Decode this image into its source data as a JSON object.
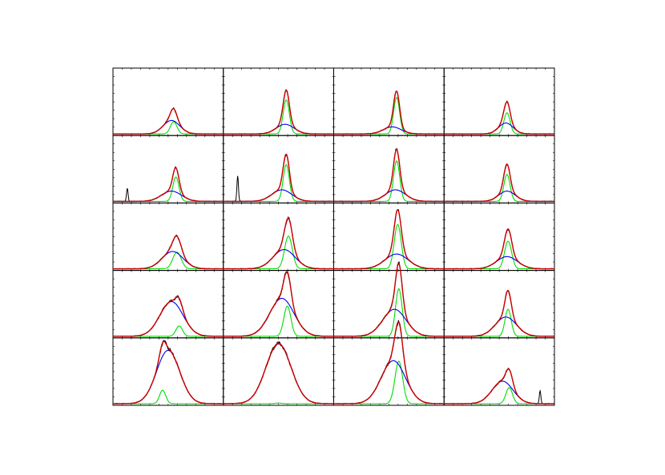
{
  "figure": {
    "rows": 5,
    "cols": 4,
    "x_range": [
      0,
      100
    ],
    "y_range": [
      0,
      1
    ],
    "colors": {
      "observed": "#000000",
      "total_fit": "#cc0000",
      "broad_component": "#0000ee",
      "narrow_component": "#00dd00",
      "frame": "#000000"
    },
    "tick_labels_shown": false
  },
  "chart_data": [
    {
      "type": "line",
      "panel": "r1c1",
      "x_range": [
        0,
        100
      ],
      "y_range": [
        0,
        1
      ],
      "components": {
        "broad": {
          "a": 0.21,
          "mu": 53,
          "sigma": 7.5
        },
        "narrow": {
          "a": 0.19,
          "mu": 55,
          "sigma": 3.0
        }
      },
      "spikes": []
    },
    {
      "type": "line",
      "panel": "r1c2",
      "x_range": [
        0,
        100
      ],
      "y_range": [
        0,
        1
      ],
      "components": {
        "broad": {
          "a": 0.15,
          "mu": 56,
          "sigma": 8.0
        },
        "narrow": {
          "a": 0.53,
          "mu": 57,
          "sigma": 2.8
        }
      },
      "spikes": []
    },
    {
      "type": "line",
      "panel": "r1c3",
      "x_range": [
        0,
        100
      ],
      "y_range": [
        0,
        1
      ],
      "components": {
        "broad": {
          "a": 0.11,
          "mu": 53,
          "sigma": 8.0
        },
        "narrow": {
          "a": 0.57,
          "mu": 57,
          "sigma": 2.7
        }
      },
      "spikes": []
    },
    {
      "type": "line",
      "panel": "r1c4",
      "x_range": [
        0,
        100
      ],
      "y_range": [
        0,
        1
      ],
      "components": {
        "broad": {
          "a": 0.17,
          "mu": 56,
          "sigma": 6.5
        },
        "narrow": {
          "a": 0.33,
          "mu": 57,
          "sigma": 2.8
        }
      },
      "spikes": []
    },
    {
      "type": "line",
      "panel": "r2c1",
      "x_range": [
        0,
        100
      ],
      "y_range": [
        0,
        1
      ],
      "components": {
        "broad": {
          "a": 0.16,
          "mu": 53,
          "sigma": 9.0
        },
        "narrow": {
          "a": 0.38,
          "mu": 57,
          "sigma": 2.8
        }
      },
      "spikes": [
        {
          "x": 13,
          "h": 0.2
        }
      ]
    },
    {
      "type": "line",
      "panel": "r2c2",
      "x_range": [
        0,
        100
      ],
      "y_range": [
        0,
        1
      ],
      "components": {
        "broad": {
          "a": 0.18,
          "mu": 53,
          "sigma": 9.0
        },
        "narrow": {
          "a": 0.57,
          "mu": 57,
          "sigma": 2.8
        }
      },
      "spikes": [
        {
          "x": 13,
          "h": 0.4
        }
      ]
    },
    {
      "type": "line",
      "panel": "r2c3",
      "x_range": [
        0,
        100
      ],
      "y_range": [
        0,
        1
      ],
      "components": {
        "broad": {
          "a": 0.18,
          "mu": 56,
          "sigma": 9.0
        },
        "narrow": {
          "a": 0.63,
          "mu": 57,
          "sigma": 2.8
        }
      },
      "spikes": []
    },
    {
      "type": "line",
      "panel": "r2c4",
      "x_range": [
        0,
        100
      ],
      "y_range": [
        0,
        1
      ],
      "components": {
        "broad": {
          "a": 0.16,
          "mu": 57,
          "sigma": 7.5
        },
        "narrow": {
          "a": 0.42,
          "mu": 57,
          "sigma": 2.8
        }
      },
      "spikes": []
    },
    {
      "type": "line",
      "panel": "r3c1",
      "x_range": [
        0,
        100
      ],
      "y_range": [
        0,
        1
      ],
      "components": {
        "broad": {
          "a": 0.27,
          "mu": 54,
          "sigma": 9.5
        },
        "narrow": {
          "a": 0.26,
          "mu": 58,
          "sigma": 3.8
        }
      },
      "spikes": []
    },
    {
      "type": "line",
      "panel": "r3c2",
      "x_range": [
        0,
        100
      ],
      "y_range": [
        0,
        1
      ],
      "components": {
        "broad": {
          "a": 0.3,
          "mu": 55,
          "sigma": 10.0
        },
        "narrow": {
          "a": 0.51,
          "mu": 59,
          "sigma": 3.5
        }
      },
      "spikes": []
    },
    {
      "type": "line",
      "panel": "r3c3",
      "x_range": [
        0,
        100
      ],
      "y_range": [
        0,
        1
      ],
      "components": {
        "broad": {
          "a": 0.23,
          "mu": 57,
          "sigma": 10.5
        },
        "narrow": {
          "a": 0.69,
          "mu": 58,
          "sigma": 3.2
        }
      },
      "spikes": []
    },
    {
      "type": "line",
      "panel": "r3c4",
      "x_range": [
        0,
        100
      ],
      "y_range": [
        0,
        1
      ],
      "components": {
        "broad": {
          "a": 0.19,
          "mu": 57,
          "sigma": 9.5
        },
        "narrow": {
          "a": 0.43,
          "mu": 58,
          "sigma": 3.2
        }
      },
      "spikes": []
    },
    {
      "type": "line",
      "panel": "r4c1",
      "x_range": [
        0,
        100
      ],
      "y_range": [
        0,
        1
      ],
      "components": {
        "broad": {
          "a": 0.54,
          "mu": 53,
          "sigma": 10.5
        },
        "narrow": {
          "a": 0.16,
          "mu": 60,
          "sigma": 3.0
        }
      },
      "spikes": []
    },
    {
      "type": "line",
      "panel": "r4c2",
      "x_range": [
        0,
        100
      ],
      "y_range": [
        0,
        1
      ],
      "components": {
        "broad": {
          "a": 0.59,
          "mu": 53,
          "sigma": 11.0
        },
        "narrow": {
          "a": 0.47,
          "mu": 58,
          "sigma": 3.2
        }
      },
      "spikes": []
    },
    {
      "type": "line",
      "panel": "r4c3",
      "x_range": [
        0,
        100
      ],
      "y_range": [
        0,
        1
      ],
      "components": {
        "broad": {
          "a": 0.42,
          "mu": 55,
          "sigma": 10.5
        },
        "narrow": {
          "a": 0.74,
          "mu": 59,
          "sigma": 3.0
        }
      },
      "spikes": []
    },
    {
      "type": "line",
      "panel": "r4c4",
      "x_range": [
        0,
        100
      ],
      "y_range": [
        0,
        1
      ],
      "components": {
        "broad": {
          "a": 0.3,
          "mu": 56,
          "sigma": 9.5
        },
        "narrow": {
          "a": 0.42,
          "mu": 58,
          "sigma": 2.8
        }
      },
      "spikes": []
    },
    {
      "type": "line",
      "panel": "r5c1",
      "x_range": [
        0,
        100
      ],
      "y_range": [
        0,
        1
      ],
      "components": {
        "broad": {
          "a": 0.83,
          "mu": 50,
          "sigma": 10.5
        },
        "narrow": {
          "a": 0.21,
          "mu": 45,
          "sigma": 2.8
        }
      },
      "spikes": []
    },
    {
      "type": "line",
      "panel": "r5c2",
      "x_range": [
        0,
        100
      ],
      "y_range": [
        0,
        1
      ],
      "components": {
        "broad": {
          "a": 0.93,
          "mu": 50,
          "sigma": 11.5
        },
        "narrow": {
          "a": 0.01,
          "mu": 50,
          "sigma": 2.8
        }
      },
      "spikes": []
    },
    {
      "type": "line",
      "panel": "r5c3",
      "x_range": [
        0,
        100
      ],
      "y_range": [
        0,
        1
      ],
      "components": {
        "broad": {
          "a": 0.67,
          "mu": 54,
          "sigma": 11.0
        },
        "narrow": {
          "a": 0.66,
          "mu": 59,
          "sigma": 3.5
        }
      },
      "spikes": []
    },
    {
      "type": "line",
      "panel": "r5c4",
      "x_range": [
        0,
        100
      ],
      "y_range": [
        0,
        1
      ],
      "components": {
        "broad": {
          "a": 0.35,
          "mu": 53,
          "sigma": 9.5
        },
        "narrow": {
          "a": 0.25,
          "mu": 59,
          "sigma": 3.0
        }
      },
      "spikes": [
        {
          "x": 87,
          "h": 0.2
        }
      ]
    }
  ]
}
